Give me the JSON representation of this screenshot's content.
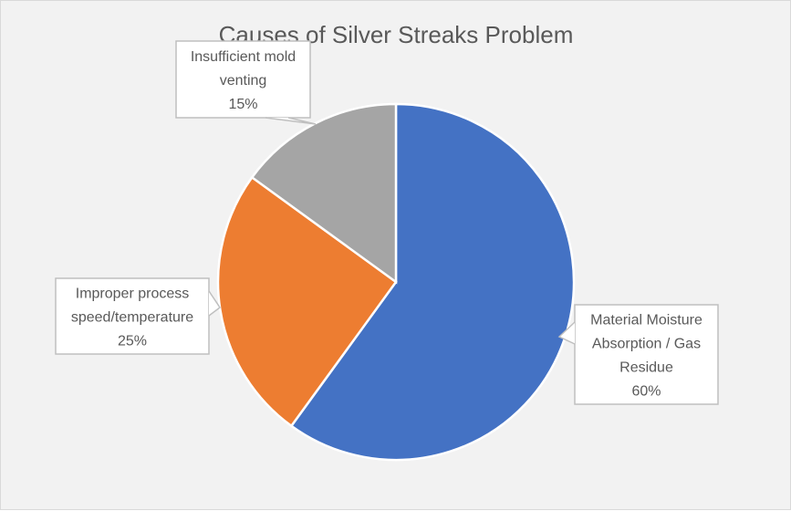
{
  "chart_data": {
    "type": "pie",
    "title": "Causes of Silver Streaks Problem",
    "start_angle_deg": 0,
    "direction": "clockwise",
    "slices": [
      {
        "label": "Material Moisture Absorption / Gas Residue",
        "label_lines": [
          "Material Moisture",
          "Absorption / Gas",
          "Residue"
        ],
        "value": 60,
        "value_label": "60%",
        "color": "#4472c4"
      },
      {
        "label": "Improper process speed/temperature",
        "label_lines": [
          "Improper process",
          "speed/temperature"
        ],
        "value": 25,
        "value_label": "25%",
        "color": "#ed7d31"
      },
      {
        "label": "Insufficient mold venting",
        "label_lines": [
          "Insufficient mold",
          "venting"
        ],
        "value": 15,
        "value_label": "15%",
        "color": "#a5a5a5"
      }
    ],
    "legend": "none",
    "data_labels": "callouts"
  }
}
